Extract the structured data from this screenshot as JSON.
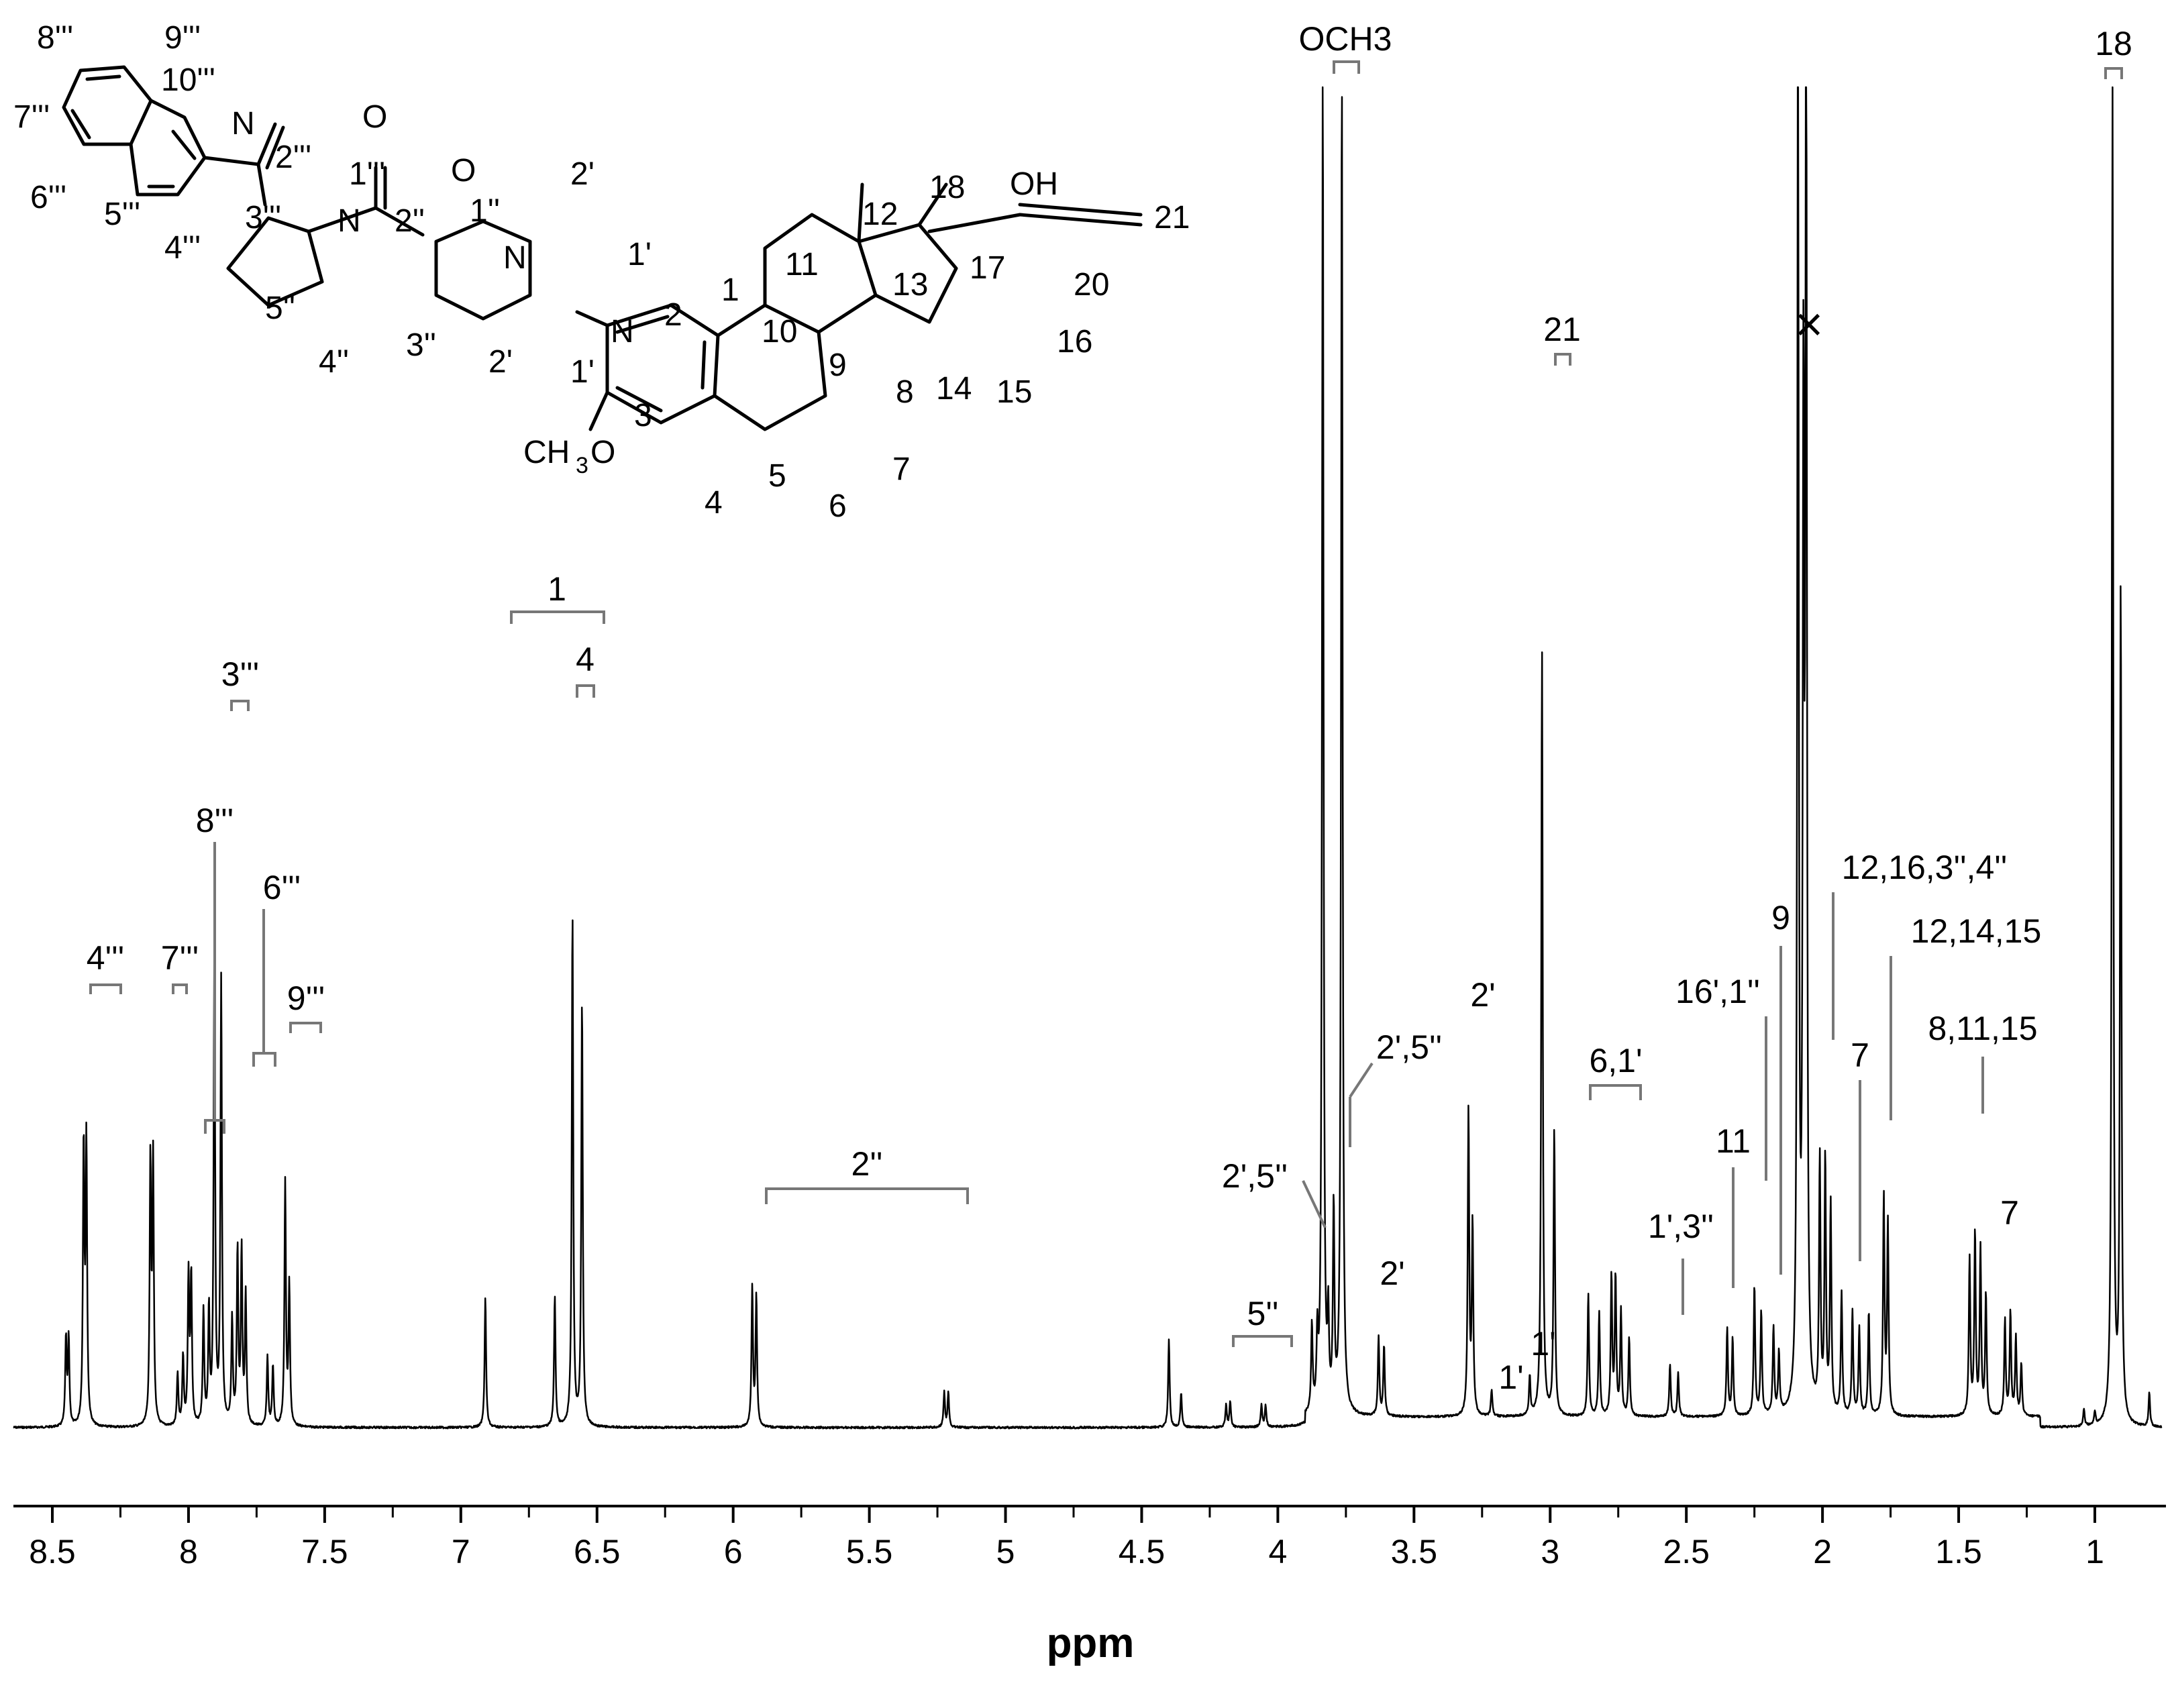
{
  "chart_data": {
    "type": "line",
    "title": "",
    "xlabel": "ppm",
    "ylabel": "",
    "xlim": [
      8.8,
      0.75
    ],
    "x_reversed": true,
    "grid": false,
    "ticks": [
      "8.5",
      "8",
      "7.5",
      "7",
      "6.5",
      "6",
      "5.5",
      "5",
      "4.5",
      "4",
      "3.5",
      "3",
      "2.5",
      "2",
      "1.5",
      "1"
    ],
    "peaks": [
      {
        "ppm": 8.45,
        "h": 0.1
      },
      {
        "ppm": 8.44,
        "h": 0.1
      },
      {
        "ppm": 8.385,
        "h": 0.32
      },
      {
        "ppm": 8.375,
        "h": 0.32
      },
      {
        "ppm": 8.14,
        "h": 0.3
      },
      {
        "ppm": 8.13,
        "h": 0.3
      },
      {
        "ppm": 8.04,
        "h": 0.06
      },
      {
        "ppm": 8.02,
        "h": 0.08
      },
      {
        "ppm": 8.0,
        "h": 0.17
      },
      {
        "ppm": 7.99,
        "h": 0.17
      },
      {
        "ppm": 7.945,
        "h": 0.13
      },
      {
        "ppm": 7.925,
        "h": 0.13
      },
      {
        "ppm": 7.905,
        "h": 0.55
      },
      {
        "ppm": 7.88,
        "h": 0.51
      },
      {
        "ppm": 7.84,
        "h": 0.12
      },
      {
        "ppm": 7.82,
        "h": 0.2
      },
      {
        "ppm": 7.805,
        "h": 0.2
      },
      {
        "ppm": 7.79,
        "h": 0.15
      },
      {
        "ppm": 7.71,
        "h": 0.08
      },
      {
        "ppm": 7.69,
        "h": 0.07
      },
      {
        "ppm": 7.645,
        "h": 0.28
      },
      {
        "ppm": 7.63,
        "h": 0.16
      },
      {
        "ppm": 6.91,
        "h": 0.15
      },
      {
        "ppm": 6.655,
        "h": 0.15
      },
      {
        "ppm": 6.59,
        "h": 0.59
      },
      {
        "ppm": 6.555,
        "h": 0.49
      },
      {
        "ppm": 5.93,
        "h": 0.16
      },
      {
        "ppm": 5.915,
        "h": 0.15
      },
      {
        "ppm": 5.225,
        "h": 0.04
      },
      {
        "ppm": 5.21,
        "h": 0.04
      },
      {
        "ppm": 4.4,
        "h": 0.1
      },
      {
        "ppm": 4.355,
        "h": 0.04
      },
      {
        "ppm": 4.19,
        "h": 0.025
      },
      {
        "ppm": 4.175,
        "h": 0.03
      },
      {
        "ppm": 4.06,
        "h": 0.025
      },
      {
        "ppm": 4.045,
        "h": 0.025
      },
      {
        "ppm": 3.875,
        "h": 0.1
      },
      {
        "ppm": 3.855,
        "h": 0.08
      },
      {
        "ppm": 3.835,
        "h": 1.55
      },
      {
        "ppm": 3.815,
        "h": 0.1
      },
      {
        "ppm": 3.795,
        "h": 0.23
      },
      {
        "ppm": 3.765,
        "h": 1.55
      },
      {
        "ppm": 3.63,
        "h": 0.09
      },
      {
        "ppm": 3.61,
        "h": 0.08
      },
      {
        "ppm": 3.3,
        "h": 0.35
      },
      {
        "ppm": 3.285,
        "h": 0.22
      },
      {
        "ppm": 3.215,
        "h": 0.03
      },
      {
        "ppm": 3.075,
        "h": 0.045
      },
      {
        "ppm": 3.03,
        "h": 0.88
      },
      {
        "ppm": 2.985,
        "h": 0.33
      },
      {
        "ppm": 2.86,
        "h": 0.14
      },
      {
        "ppm": 2.82,
        "h": 0.12
      },
      {
        "ppm": 2.775,
        "h": 0.16
      },
      {
        "ppm": 2.76,
        "h": 0.16
      },
      {
        "ppm": 2.74,
        "h": 0.12
      },
      {
        "ppm": 2.71,
        "h": 0.09
      },
      {
        "ppm": 2.56,
        "h": 0.06
      },
      {
        "ppm": 2.53,
        "h": 0.05
      },
      {
        "ppm": 2.35,
        "h": 0.1
      },
      {
        "ppm": 2.33,
        "h": 0.09
      },
      {
        "ppm": 2.25,
        "h": 0.15
      },
      {
        "ppm": 2.225,
        "h": 0.12
      },
      {
        "ppm": 2.18,
        "h": 0.1
      },
      {
        "ppm": 2.16,
        "h": 0.07
      },
      {
        "ppm": 2.09,
        "h": 1.65
      },
      {
        "ppm": 2.07,
        "h": 1.1
      },
      {
        "ppm": 2.06,
        "h": 1.65
      },
      {
        "ppm": 2.01,
        "h": 0.29
      },
      {
        "ppm": 1.99,
        "h": 0.29
      },
      {
        "ppm": 1.97,
        "h": 0.24
      },
      {
        "ppm": 1.93,
        "h": 0.14
      },
      {
        "ppm": 1.89,
        "h": 0.12
      },
      {
        "ppm": 1.865,
        "h": 0.1
      },
      {
        "ppm": 1.83,
        "h": 0.12
      },
      {
        "ppm": 1.775,
        "h": 0.25
      },
      {
        "ppm": 1.76,
        "h": 0.22
      },
      {
        "ppm": 1.46,
        "h": 0.18
      },
      {
        "ppm": 1.44,
        "h": 0.21
      },
      {
        "ppm": 1.42,
        "h": 0.19
      },
      {
        "ppm": 1.4,
        "h": 0.14
      },
      {
        "ppm": 1.33,
        "h": 0.11
      },
      {
        "ppm": 1.31,
        "h": 0.12
      },
      {
        "ppm": 1.29,
        "h": 0.09
      },
      {
        "ppm": 1.27,
        "h": 0.06
      },
      {
        "ppm": 1.04,
        "h": 0.02
      },
      {
        "ppm": 1.0,
        "h": 0.015
      },
      {
        "ppm": 0.935,
        "h": 1.55
      },
      {
        "ppm": 0.905,
        "h": 0.96
      },
      {
        "ppm": 0.8,
        "h": 0.04
      }
    ],
    "annotations": [
      {
        "text": "4'''",
        "ppm": 8.41
      },
      {
        "text": "7'''",
        "ppm": 8.135
      },
      {
        "text": "8'''",
        "ppm": 7.99
      },
      {
        "text": "3'''",
        "ppm": 7.89
      },
      {
        "text": "6'''",
        "ppm": 7.81
      },
      {
        "text": "9'''",
        "ppm": 7.65
      },
      {
        "text": "1",
        "ppm": 6.75
      },
      {
        "text": "4",
        "ppm": 6.63
      },
      {
        "text": "2''",
        "ppm": 5.6
      },
      {
        "text": "5''",
        "ppm": 4.12
      },
      {
        "text": "2',5''",
        "ppm": 3.89
      },
      {
        "text": "2'",
        "ppm": 3.62
      },
      {
        "text": "OCH3",
        "ppm": 3.8
      },
      {
        "text": "2',5''",
        "ppm": 3.79
      },
      {
        "text": "2'",
        "ppm": 3.29
      },
      {
        "text": "1'",
        "ppm": 3.21
      },
      {
        "text": "1'",
        "ppm": 3.08
      },
      {
        "text": "21",
        "ppm": 3.02
      },
      {
        "text": "6,1'",
        "ppm": 2.78
      },
      {
        "text": "1',3''",
        "ppm": 2.56
      },
      {
        "text": "11",
        "ppm": 2.35
      },
      {
        "text": "16',1''",
        "ppm": 2.24
      },
      {
        "text": "9",
        "ppm": 2.18
      },
      {
        "text": "×",
        "ppm": 2.08
      },
      {
        "text": "12,16,3'',4''",
        "ppm": 1.99
      },
      {
        "text": "7",
        "ppm": 1.88
      },
      {
        "text": "12,14,15",
        "ppm": 1.77
      },
      {
        "text": "8,11,15",
        "ppm": 1.43
      },
      {
        "text": "7",
        "ppm": 1.29
      },
      {
        "text": "18",
        "ppm": 0.93
      }
    ]
  },
  "molecule": {
    "labels": [
      "8'''",
      "9'''",
      "10'''",
      "7'''",
      "N",
      "2'''",
      "O",
      "1'''",
      "6'''",
      "5'''",
      "4'''",
      "3'''",
      "N",
      "2''",
      "O",
      "1''",
      "2'",
      "N",
      "1'",
      "5''",
      "4''",
      "3''",
      "2'",
      "1'",
      "N",
      "2",
      "1",
      "10",
      "11",
      "12",
      "18",
      "OH",
      "21",
      "13",
      "17",
      "20",
      "16",
      "9",
      "8",
      "14",
      "15",
      "3",
      "CH",
      "3",
      "O",
      "4",
      "5",
      "6",
      "7"
    ]
  }
}
